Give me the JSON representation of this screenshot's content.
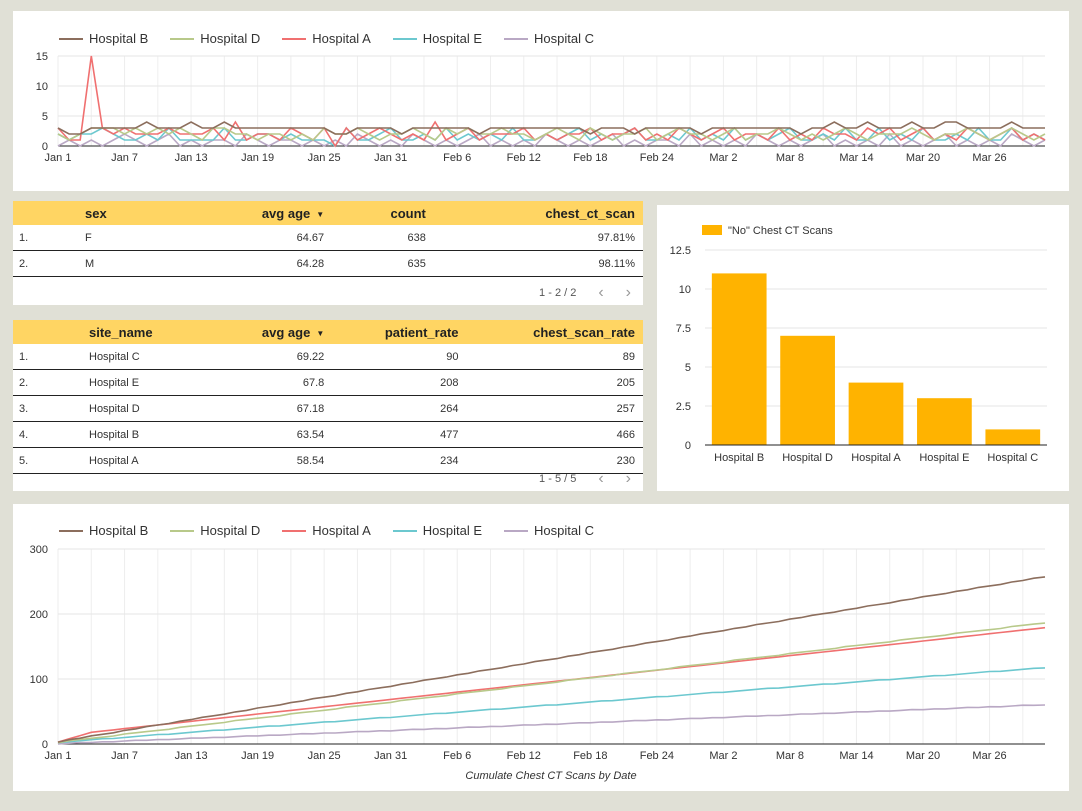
{
  "colors": {
    "hospital_b": "#8c6e5d",
    "hospital_d": "#b8c98a",
    "hospital_a": "#f07070",
    "hospital_e": "#6cc8cf",
    "hospital_c": "#b9a8c4",
    "bar": "#ffb300",
    "table_header": "#ffd563"
  },
  "legend": [
    {
      "name": "Hospital B",
      "color": "#8c6e5d"
    },
    {
      "name": "Hospital D",
      "color": "#b8c98a"
    },
    {
      "name": "Hospital A",
      "color": "#f07070"
    },
    {
      "name": "Hospital E",
      "color": "#6cc8cf"
    },
    {
      "name": "Hospital C",
      "color": "#b9a8c4"
    }
  ],
  "sex_table": {
    "columns": [
      "sex",
      "avg age",
      "count",
      "chest_ct_scan"
    ],
    "sort_icon": "caret-down-icon",
    "rows": [
      {
        "idx": "1.",
        "sex": "F",
        "avg_age": "64.67",
        "count": "638",
        "chest_ct_scan": "97.81%"
      },
      {
        "idx": "2.",
        "sex": "M",
        "avg_age": "64.28",
        "count": "635",
        "chest_ct_scan": "98.11%"
      }
    ],
    "pager": "1 - 2 / 2"
  },
  "site_table": {
    "columns": [
      "site_name",
      "avg age",
      "patient_rate",
      "chest_scan_rate"
    ],
    "rows": [
      {
        "idx": "1.",
        "site_name": "Hospital C",
        "avg_age": "69.22",
        "patient_rate": "90",
        "chest_scan_rate": "89"
      },
      {
        "idx": "2.",
        "site_name": "Hospital E",
        "avg_age": "67.8",
        "patient_rate": "208",
        "chest_scan_rate": "205"
      },
      {
        "idx": "3.",
        "site_name": "Hospital D",
        "avg_age": "67.18",
        "patient_rate": "264",
        "chest_scan_rate": "257"
      },
      {
        "idx": "4.",
        "site_name": "Hospital B",
        "avg_age": "63.54",
        "patient_rate": "477",
        "chest_scan_rate": "466"
      },
      {
        "idx": "5.",
        "site_name": "Hospital A",
        "avg_age": "58.54",
        "patient_rate": "234",
        "chest_scan_rate": "230"
      }
    ],
    "pager": "1 - 5 / 5"
  },
  "chart_data": [
    {
      "type": "line",
      "x_ticks": [
        "Jan 1",
        "Jan 7",
        "Jan 13",
        "Jan 19",
        "Jan 25",
        "Jan 31",
        "Feb 6",
        "Feb 12",
        "Feb 18",
        "Feb 24",
        "Mar 2",
        "Mar 8",
        "Mar 14",
        "Mar 20",
        "Mar 26"
      ],
      "y_ticks": [
        0,
        5,
        10,
        15
      ],
      "ylim": [
        0,
        15
      ],
      "n_days": 90,
      "series": [
        {
          "name": "Hospital B",
          "values": [
            3,
            2,
            2,
            3,
            3,
            3,
            3,
            3,
            4,
            3,
            3,
            3,
            4,
            3,
            3,
            4,
            3,
            3,
            3,
            3,
            3,
            3,
            3,
            3,
            3,
            2,
            2,
            3,
            3,
            3,
            3,
            2,
            3,
            3,
            3,
            3,
            3,
            3,
            2,
            3,
            3,
            3,
            3,
            3,
            3,
            3,
            3,
            3,
            2,
            3,
            3,
            3,
            2,
            3,
            3,
            3,
            3,
            3,
            2,
            3,
            3,
            3,
            3,
            3,
            3,
            3,
            3,
            2,
            3,
            3,
            4,
            3,
            3,
            4,
            3,
            3,
            3,
            4,
            3,
            3,
            4,
            4,
            3,
            3,
            3,
            3,
            4,
            3,
            3,
            3
          ]
        },
        {
          "name": "Hospital D",
          "values": [
            2,
            1,
            2,
            3,
            3,
            3,
            2,
            3,
            2,
            3,
            2,
            3,
            2,
            1,
            3,
            3,
            2,
            2,
            1,
            2,
            2,
            1,
            2,
            1,
            3,
            2,
            2,
            3,
            2,
            1,
            2,
            2,
            3,
            2,
            1,
            3,
            2,
            3,
            2,
            2,
            3,
            2,
            2,
            1,
            2,
            3,
            2,
            1,
            3,
            2,
            1,
            2,
            2,
            3,
            1,
            2,
            3,
            2,
            2,
            1,
            2,
            3,
            1,
            2,
            2,
            3,
            2,
            1,
            2,
            1,
            2,
            3,
            2,
            1,
            2,
            2,
            2,
            3,
            2,
            1,
            2,
            2,
            3,
            2,
            1,
            2,
            3,
            2,
            1,
            2
          ]
        },
        {
          "name": "Hospital A",
          "values": [
            3,
            1,
            1,
            15,
            3,
            2,
            3,
            2,
            2,
            2,
            3,
            2,
            2,
            2,
            3,
            1,
            4,
            1,
            2,
            2,
            1,
            3,
            2,
            1,
            3,
            0,
            3,
            1,
            2,
            3,
            2,
            1,
            2,
            1,
            4,
            1,
            2,
            3,
            1,
            2,
            2,
            2,
            3,
            1,
            2,
            1,
            2,
            2,
            3,
            1,
            2,
            2,
            3,
            1,
            2,
            1,
            3,
            2,
            1,
            2,
            3,
            1,
            2,
            2,
            1,
            3,
            1,
            2,
            1,
            3,
            2,
            2,
            1,
            3,
            2,
            3,
            1,
            2,
            3,
            1,
            2,
            1,
            3,
            2,
            1,
            2,
            3,
            1,
            2,
            1
          ]
        },
        {
          "name": "Hospital E",
          "values": [
            2,
            1,
            2,
            2,
            3,
            2,
            1,
            1,
            2,
            1,
            3,
            1,
            1,
            1,
            1,
            3,
            1,
            1,
            2,
            2,
            1,
            2,
            1,
            1,
            1,
            0,
            3,
            1,
            1,
            2,
            3,
            1,
            1,
            2,
            1,
            3,
            1,
            2,
            1,
            2,
            1,
            3,
            1,
            1,
            2,
            1,
            2,
            3,
            1,
            2,
            1,
            2,
            3,
            1,
            1,
            2,
            1,
            3,
            1,
            2,
            1,
            3,
            1,
            2,
            1,
            2,
            3,
            1,
            1,
            2,
            1,
            3,
            1,
            1,
            3,
            1,
            2,
            1,
            3,
            1,
            1,
            2,
            1,
            3,
            1,
            1,
            3,
            1,
            2,
            1
          ]
        },
        {
          "name": "Hospital C",
          "values": [
            0,
            1,
            0,
            1,
            0,
            1,
            2,
            1,
            0,
            1,
            2,
            0,
            1,
            0,
            1,
            1,
            0,
            2,
            1,
            0,
            1,
            1,
            0,
            1,
            0,
            1,
            0,
            2,
            1,
            0,
            1,
            0,
            2,
            1,
            0,
            1,
            0,
            1,
            2,
            0,
            1,
            0,
            1,
            0,
            2,
            1,
            0,
            1,
            0,
            1,
            2,
            0,
            1,
            0,
            1,
            1,
            0,
            2,
            0,
            1,
            0,
            1,
            0,
            2,
            1,
            0,
            1,
            0,
            1,
            2,
            0,
            1,
            0,
            1,
            0,
            2,
            0,
            1,
            0,
            1,
            2,
            0,
            1,
            0,
            1,
            0,
            2,
            1,
            0,
            1
          ]
        }
      ]
    },
    {
      "type": "bar",
      "legend": "\"No\" Chest CT Scans",
      "categories": [
        "Hospital B",
        "Hospital D",
        "Hospital A",
        "Hospital E",
        "Hospital C"
      ],
      "values": [
        11,
        7,
        4,
        3,
        1
      ],
      "y_ticks": [
        "0",
        "2.5",
        "5",
        "7.5",
        "10",
        "12.5"
      ],
      "ylim": [
        0,
        12.5
      ]
    },
    {
      "type": "line",
      "xlabel": "Cumulate Chest CT Scans by Date",
      "x_ticks": [
        "Jan 1",
        "Jan 7",
        "Jan 13",
        "Jan 19",
        "Jan 25",
        "Jan 31",
        "Feb 6",
        "Feb 12",
        "Feb 18",
        "Feb 24",
        "Mar 2",
        "Mar 8",
        "Mar 14",
        "Mar 20",
        "Mar 26"
      ],
      "y_ticks": [
        0,
        100,
        200,
        300
      ],
      "ylim": [
        0,
        300
      ],
      "n_days": 90,
      "series": [
        {
          "name": "Hospital B",
          "start": 3,
          "end": 257
        },
        {
          "name": "Hospital D",
          "start": 2,
          "end": 186
        },
        {
          "name": "Hospital A",
          "start": 3,
          "end": 179,
          "jump_day": 3,
          "jump_to": 18
        },
        {
          "name": "Hospital E",
          "start": 2,
          "end": 117
        },
        {
          "name": "Hospital C",
          "start": 0,
          "end": 60
        }
      ]
    }
  ]
}
